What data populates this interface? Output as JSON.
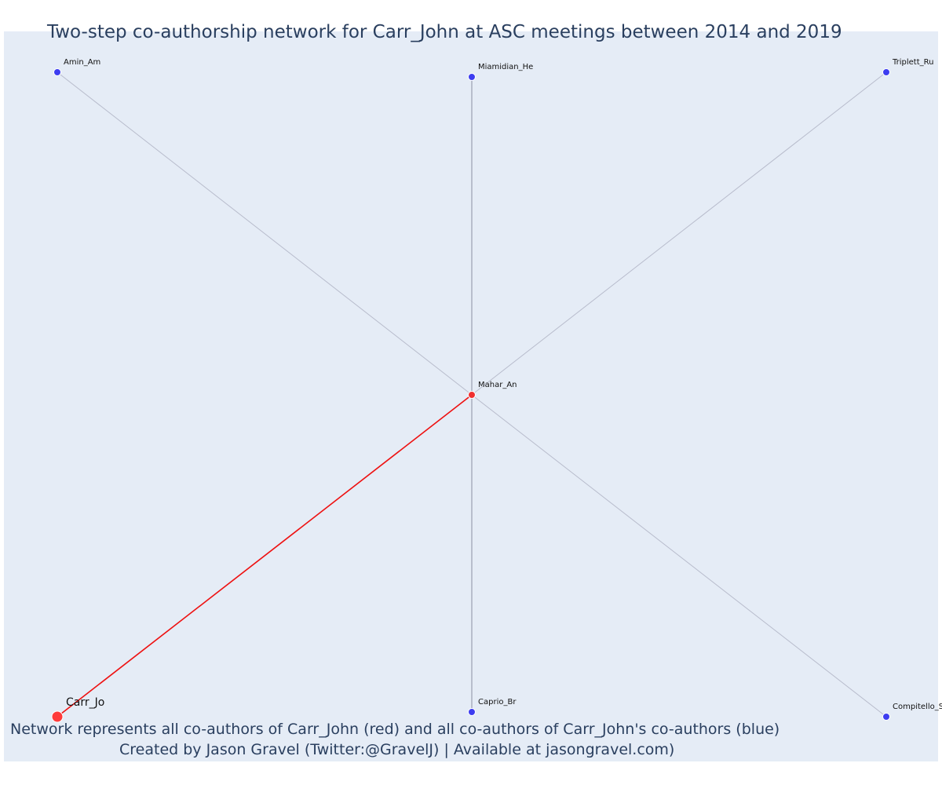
{
  "title": "Two-step co-authorship network for Carr_John at ASC meetings between 2014 and 2019",
  "caption_lines": [
    "Network represents all co-authors of Carr_John (red) and all co-authors of Carr_John's co-authors (blue)",
    "Created by Jason Gravel (Twitter:@GravelJ) | Available at jasongravel.com)"
  ],
  "colors": {
    "focal": "#ff3b3b",
    "coauthor": "#f03030",
    "second_step": "#3d3df0",
    "focal_edge": "#ee1111",
    "other_edge": "#b8bccc",
    "background": "#e5ecf6"
  },
  "nodes": [
    {
      "id": "Carr_Jo",
      "label": "Carr_Jo",
      "group": "focal"
    },
    {
      "id": "Mahar_An",
      "label": "Mahar_An",
      "group": "coauthor"
    },
    {
      "id": "Amin_Am",
      "label": "Amin_Am",
      "group": "second_step"
    },
    {
      "id": "Miamidian_He",
      "label": "Miamidian_He",
      "group": "second_step"
    },
    {
      "id": "Triplett_Ru",
      "label": "Triplett_Ru",
      "group": "second_step"
    },
    {
      "id": "Caprio_Br",
      "label": "Caprio_Br",
      "group": "second_step"
    },
    {
      "id": "Compitello_S",
      "label": "Compitello_S",
      "group": "second_step"
    }
  ],
  "edges": [
    {
      "source": "Carr_Jo",
      "target": "Mahar_An"
    },
    {
      "source": "Mahar_An",
      "target": "Amin_Am"
    },
    {
      "source": "Mahar_An",
      "target": "Miamidian_He"
    },
    {
      "source": "Mahar_An",
      "target": "Triplett_Ru"
    },
    {
      "source": "Mahar_An",
      "target": "Caprio_Br"
    },
    {
      "source": "Mahar_An",
      "target": "Compitello_S"
    }
  ]
}
